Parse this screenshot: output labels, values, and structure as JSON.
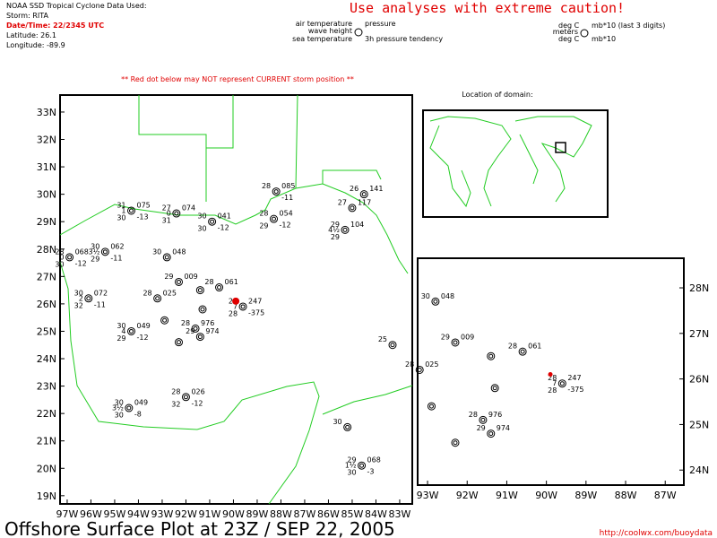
{
  "header": {
    "source": "NOAA SSD Tropical Cyclone Data Used:",
    "storm": "Storm: RITA",
    "datetime": "Date/Time: 22/2345 UTC",
    "latitude": "Latitude: 26.1",
    "longitude": "Longitude: -89.9",
    "caution": "Use analyses with extreme caution!",
    "warning": "** Red dot below may NOT represent CURRENT storm position **"
  },
  "legend": {
    "air": "air temperature",
    "pres": "pressure",
    "wave": "wave height",
    "sea": "sea temperature",
    "tend": "3h pressure tendency",
    "air_unit": "deg C",
    "pres_unit": "mb*10 (last 3 digits)",
    "wave_unit": "meters",
    "sea_unit": "deg C",
    "tend_unit": "mb*10"
  },
  "domain_title": "Location of domain:",
  "footer": {
    "title": "Offshore Surface Plot at 23Z / SEP 22, 2005",
    "url": "http://coolwx.com/buoydata"
  },
  "storm_dot": {
    "lat": 26.1,
    "lon": -89.9
  },
  "maps": {
    "main": {
      "xlim": [
        -97.3,
        -82.47
      ],
      "ylim": [
        18.7,
        33.62
      ],
      "xticks": [
        {
          "value": -97,
          "label": "97W"
        },
        {
          "value": -96,
          "label": "96W"
        },
        {
          "value": -95,
          "label": "95W"
        },
        {
          "value": -94,
          "label": "94W"
        },
        {
          "value": -93,
          "label": "93W"
        },
        {
          "value": -92,
          "label": "92W"
        },
        {
          "value": -91,
          "label": "91W"
        },
        {
          "value": -90,
          "label": "90W"
        },
        {
          "value": -89,
          "label": "89W"
        },
        {
          "value": -88,
          "label": "88W"
        },
        {
          "value": -87,
          "label": "87W"
        },
        {
          "value": -86,
          "label": "86W"
        },
        {
          "value": -85,
          "label": "85W"
        },
        {
          "value": -84,
          "label": "84W"
        },
        {
          "value": -83,
          "label": "83W"
        }
      ],
      "yticks": [
        {
          "value": 19,
          "label": "19N"
        },
        {
          "value": 20,
          "label": "20N"
        },
        {
          "value": 21,
          "label": "21N"
        },
        {
          "value": 22,
          "label": "22N"
        },
        {
          "value": 23,
          "label": "23N"
        },
        {
          "value": 24,
          "label": "24N"
        },
        {
          "value": 25,
          "label": "25N"
        },
        {
          "value": 26,
          "label": "26N"
        },
        {
          "value": 27,
          "label": "27N"
        },
        {
          "value": 28,
          "label": "28N"
        },
        {
          "value": 29,
          "label": "29N"
        },
        {
          "value": 30,
          "label": "30N"
        },
        {
          "value": 31,
          "label": "31N"
        },
        {
          "value": 32,
          "label": "32N"
        },
        {
          "value": 33,
          "label": "33N"
        }
      ]
    },
    "inset": {
      "xlim": [
        -93.25,
        -86.53
      ],
      "ylim": [
        23.67,
        28.65
      ],
      "xticks": [
        {
          "value": -93,
          "label": "93W"
        },
        {
          "value": -92,
          "label": "92W"
        },
        {
          "value": -91,
          "label": "91W"
        },
        {
          "value": -90,
          "label": "90W"
        },
        {
          "value": -89,
          "label": "89W"
        },
        {
          "value": -88,
          "label": "88W"
        },
        {
          "value": -87,
          "label": "87W"
        }
      ],
      "yticks": [
        {
          "value": 24,
          "label": "24N"
        },
        {
          "value": 25,
          "label": "25N"
        },
        {
          "value": 26,
          "label": "26N"
        },
        {
          "value": 27,
          "label": "27N"
        },
        {
          "value": 28,
          "label": "28N"
        }
      ]
    }
  },
  "stations": [
    {
      "lat": 27.7,
      "lon": -96.9,
      "air": "28",
      "pres": "068",
      "wave": "0",
      "sea": "30",
      "tend": "-12"
    },
    {
      "lat": 26.2,
      "lon": -96.1,
      "air": "30",
      "pres": "072",
      "wave": "2",
      "sea": "32",
      "tend": "-11"
    },
    {
      "lat": 29.4,
      "lon": -94.3,
      "air": "31",
      "pres": "075",
      "wave": "1",
      "sea": "30",
      "tend": "-13"
    },
    {
      "lat": 27.9,
      "lon": -95.4,
      "air": "30",
      "pres": "062",
      "wave": "3½",
      "sea": "29",
      "tend": "-11"
    },
    {
      "lat": 29.3,
      "lon": -92.4,
      "air": "27",
      "pres": "074",
      "wave": "0",
      "sea": "31"
    },
    {
      "lat": 29.0,
      "lon": -90.9,
      "air": "30",
      "pres": "041",
      "sea": "30",
      "tend": "-12"
    },
    {
      "lat": 30.1,
      "lon": -88.2,
      "air": "28",
      "pres": "085",
      "tend": "-11"
    },
    {
      "lat": 29.1,
      "lon": -88.3,
      "air": "28",
      "pres": "054",
      "sea": "29",
      "tend": "-12"
    },
    {
      "lat": 30.0,
      "lon": -84.5,
      "air": "26",
      "pres": "141"
    },
    {
      "lat": 29.5,
      "lon": -85.0,
      "air": "27",
      "pres": "117"
    },
    {
      "lat": 28.7,
      "lon": -85.3,
      "air": "29",
      "pres": "104",
      "wave": "4½",
      "sea": "29"
    },
    {
      "lat": 27.7,
      "lon": -92.8,
      "air": "30",
      "pres": "048"
    },
    {
      "lat": 26.8,
      "lon": -92.3,
      "air": "29",
      "pres": "009"
    },
    {
      "lat": 26.6,
      "lon": -90.6,
      "air": "28",
      "pres": "061"
    },
    {
      "lat": 26.2,
      "lon": -93.2,
      "air": "28",
      "pres": "025"
    },
    {
      "lat": 25.9,
      "lon": -89.6,
      "air": "28",
      "pres": "247",
      "wave": "7",
      "sea": "28",
      "tend": "-375"
    },
    {
      "lat": 25.1,
      "lon": -91.6,
      "air": "28",
      "pres": "976"
    },
    {
      "lat": 24.8,
      "lon": -91.4,
      "air": "29",
      "pres": "974"
    },
    {
      "lat": 25.0,
      "lon": -94.3,
      "air": "30",
      "pres": "049",
      "wave": "4",
      "sea": "29",
      "tend": "-12"
    },
    {
      "lat": 22.2,
      "lon": -94.4,
      "air": "30",
      "pres": "049",
      "wave": "3½",
      "sea": "30",
      "tend": "-8"
    },
    {
      "lat": 22.6,
      "lon": -92.0,
      "air": "28",
      "pres": "026",
      "sea": "32",
      "tend": "-12"
    },
    {
      "lat": 24.5,
      "lon": -83.3,
      "air": "25"
    },
    {
      "lat": 20.1,
      "lon": -84.6,
      "air": "29",
      "pres": "068",
      "wave": "1½",
      "sea": "30",
      "tend": "-3"
    },
    {
      "lat": 21.5,
      "lon": -85.2,
      "air": "30"
    },
    {
      "lat": 25.4,
      "lon": -92.9
    },
    {
      "lat": 25.8,
      "lon": -91.3
    },
    {
      "lat": 24.6,
      "lon": -92.3
    },
    {
      "lat": 26.5,
      "lon": -91.4
    }
  ]
}
